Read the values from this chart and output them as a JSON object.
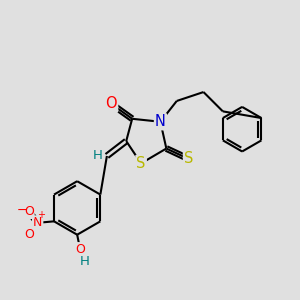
{
  "bg_color": "#e0e0e0",
  "bond_color": "#000000",
  "bond_width": 1.5,
  "atom_colors": {
    "O": "#ff0000",
    "N": "#0000cd",
    "S": "#b8b800",
    "H": "#008080",
    "C": "#000000"
  },
  "font_size": 9.5
}
